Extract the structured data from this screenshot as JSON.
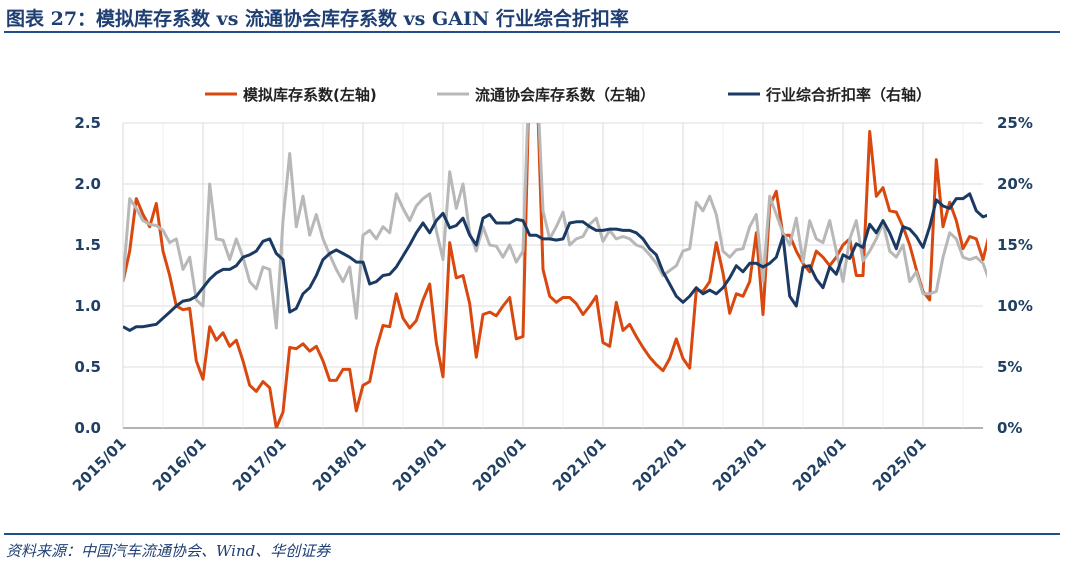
{
  "title": "图表 27：模拟库存系数 vs 流通协会库存系数 vs GAIN 行业综合折扣率",
  "source": "资料来源：中国汽车流通协会、Wind、华创证券",
  "chart_data": {
    "type": "line",
    "title": "图表 27：模拟库存系数 vs 流通协会库存系数 vs GAIN 行业综合折扣率",
    "x_start": "2015/01",
    "x_frequency": "monthly",
    "x_tick_labels": [
      "2015/01",
      "2016/01",
      "2017/01",
      "2018/01",
      "2019/01",
      "2020/01",
      "2021/01",
      "2022/01",
      "2023/01",
      "2024/01",
      "2025/01"
    ],
    "y_left": {
      "lim": [
        0,
        2.5
      ],
      "ticks": [
        "0.0",
        "0.5",
        "1.0",
        "1.5",
        "2.0",
        "2.5"
      ]
    },
    "y_right": {
      "lim": [
        0,
        25
      ],
      "ticks": [
        "0%",
        "5%",
        "10%",
        "15%",
        "20%",
        "25%"
      ],
      "unit": "%"
    },
    "grid": true,
    "legend_placement": "top",
    "series": [
      {
        "name": "模拟库存系数(左轴)",
        "axis": "left",
        "color": "#d9480f",
        "values": [
          1.2,
          1.45,
          1.88,
          1.75,
          1.65,
          1.84,
          1.45,
          1.25,
          1.0,
          0.97,
          0.98,
          0.55,
          0.4,
          0.83,
          0.72,
          0.78,
          0.67,
          0.72,
          0.55,
          0.35,
          0.3,
          0.38,
          0.33,
          0.0,
          0.13,
          0.66,
          0.65,
          0.69,
          0.63,
          0.67,
          0.55,
          0.39,
          0.39,
          0.48,
          0.48,
          0.14,
          0.35,
          0.38,
          0.65,
          0.84,
          0.83,
          1.1,
          0.9,
          0.82,
          0.88,
          1.05,
          1.18,
          0.7,
          0.42,
          1.52,
          1.23,
          1.25,
          1.02,
          0.58,
          0.93,
          0.95,
          0.92,
          1.0,
          1.07,
          0.73,
          0.75,
          3.0,
          3.0,
          1.3,
          1.08,
          1.03,
          1.07,
          1.07,
          1.02,
          0.93,
          1.0,
          1.08,
          0.7,
          0.67,
          1.03,
          0.8,
          0.85,
          0.75,
          0.66,
          0.58,
          0.52,
          0.47,
          0.57,
          0.73,
          0.57,
          0.49,
          1.13,
          1.12,
          1.2,
          1.52,
          1.27,
          0.94,
          1.1,
          1.08,
          1.2,
          1.6,
          0.93,
          1.82,
          1.94,
          1.58,
          1.58,
          1.45,
          1.35,
          1.28,
          1.45,
          1.4,
          1.33,
          1.4,
          1.5,
          1.55,
          1.25,
          1.25,
          2.43,
          1.9,
          1.97,
          1.78,
          1.77,
          1.65,
          1.5,
          1.3,
          1.12,
          1.05,
          2.2,
          1.65,
          1.85,
          1.7,
          1.47,
          1.57,
          1.55,
          1.38,
          1.6
        ]
      },
      {
        "name": "流通协会库存系数（左轴）",
        "axis": "left",
        "color": "#b8b8b8",
        "values": [
          1.2,
          1.88,
          1.8,
          1.7,
          1.67,
          1.66,
          1.62,
          1.52,
          1.55,
          1.3,
          1.4,
          1.05,
          1.0,
          2.0,
          1.55,
          1.54,
          1.38,
          1.55,
          1.4,
          1.2,
          1.14,
          1.32,
          1.3,
          0.82,
          1.7,
          2.25,
          1.65,
          1.9,
          1.58,
          1.75,
          1.55,
          1.42,
          1.3,
          1.2,
          1.32,
          0.9,
          1.58,
          1.62,
          1.55,
          1.65,
          1.6,
          1.92,
          1.8,
          1.7,
          1.82,
          1.88,
          1.92,
          1.62,
          1.38,
          2.1,
          1.8,
          2.0,
          1.6,
          1.45,
          1.65,
          1.5,
          1.49,
          1.4,
          1.5,
          1.36,
          1.45,
          3.0,
          3.0,
          1.78,
          1.55,
          1.65,
          1.77,
          1.5,
          1.55,
          1.57,
          1.67,
          1.72,
          1.53,
          1.62,
          1.55,
          1.57,
          1.55,
          1.5,
          1.48,
          1.42,
          1.35,
          1.25,
          1.29,
          1.33,
          1.45,
          1.47,
          1.85,
          1.78,
          1.9,
          1.75,
          1.45,
          1.4,
          1.46,
          1.47,
          1.65,
          1.75,
          1.2,
          1.9,
          1.75,
          1.6,
          1.5,
          1.72,
          1.36,
          1.7,
          1.55,
          1.52,
          1.7,
          1.45,
          1.2,
          1.55,
          1.7,
          1.37,
          1.45,
          1.55,
          1.68,
          1.45,
          1.4,
          1.5,
          1.2,
          1.28,
          1.1,
          1.1,
          1.12,
          1.4,
          1.6,
          1.55,
          1.4,
          1.38,
          1.4,
          1.35,
          1.2
        ]
      },
      {
        "name": "行业综合折扣率（右轴）",
        "axis": "right",
        "color": "#1b3a63",
        "values": [
          8.3,
          8.0,
          8.3,
          8.3,
          8.4,
          8.5,
          9.0,
          9.5,
          10.0,
          10.4,
          10.5,
          10.8,
          11.5,
          12.2,
          12.7,
          13.0,
          13.0,
          13.3,
          14.0,
          14.2,
          14.5,
          15.3,
          15.5,
          14.3,
          13.8,
          9.5,
          9.8,
          11.0,
          11.5,
          12.5,
          13.8,
          14.3,
          14.6,
          14.3,
          14.0,
          13.6,
          13.6,
          11.8,
          12.0,
          12.5,
          12.6,
          13.2,
          14.1,
          15.0,
          16.0,
          16.8,
          16.0,
          17.0,
          17.6,
          16.4,
          16.6,
          17.2,
          15.8,
          15.0,
          17.2,
          17.5,
          16.8,
          16.8,
          16.8,
          17.1,
          17.0,
          15.8,
          15.8,
          15.5,
          15.5,
          15.4,
          15.5,
          16.8,
          16.9,
          16.9,
          16.5,
          16.2,
          16.2,
          16.3,
          16.3,
          16.2,
          16.2,
          16.0,
          15.5,
          14.7,
          14.2,
          12.8,
          11.8,
          10.8,
          10.3,
          10.8,
          11.5,
          11.0,
          11.3,
          11.0,
          11.5,
          12.3,
          13.3,
          12.8,
          13.5,
          13.5,
          13.2,
          13.5,
          14.0,
          15.7,
          10.8,
          10.0,
          13.2,
          13.3,
          12.2,
          11.5,
          13.2,
          12.6,
          14.2,
          13.9,
          15.1,
          14.8,
          16.7,
          16.0,
          17.0,
          16.0,
          14.7,
          16.5,
          16.3,
          15.7,
          14.8,
          16.5,
          18.7,
          18.2,
          18.0,
          18.8,
          18.8,
          19.2,
          17.8,
          17.3,
          17.5
        ]
      }
    ]
  }
}
